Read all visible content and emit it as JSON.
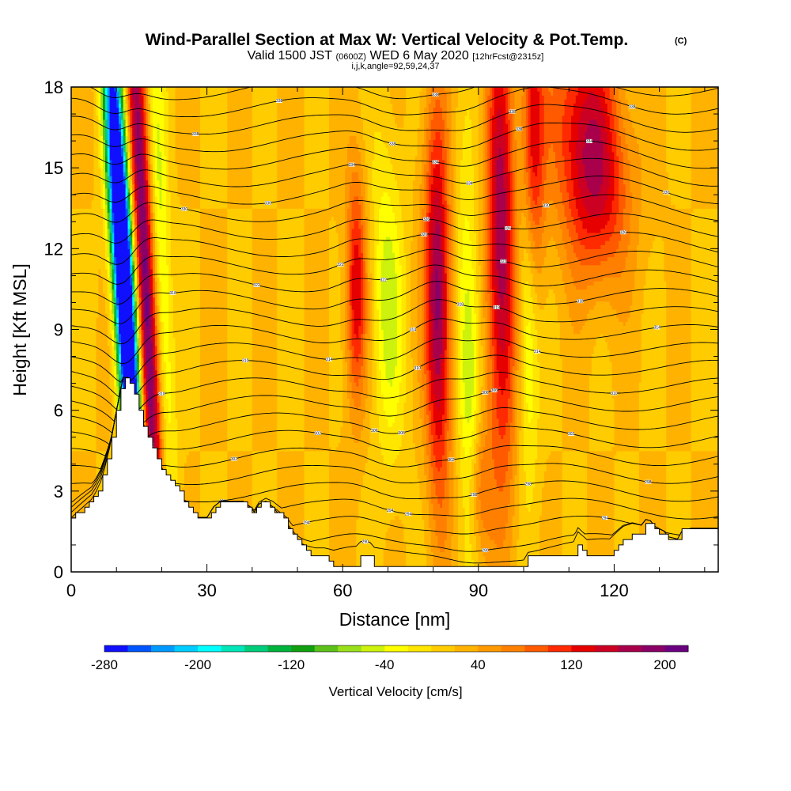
{
  "title": {
    "main": "Wind-Parallel Section at Max W: Vertical Velocity & Pot.Temp.",
    "copyright": "(C)",
    "line2": {
      "valid": "Valid 1500 JST",
      "utc": "(0600Z)",
      "date": "WED 6 May 2020",
      "fcst": "[12hrFcst@2315z]"
    },
    "line3": "i,j,k,angle=92,59,24,37"
  },
  "chart_data": {
    "type": "heatmap",
    "xlabel": "Distance [nm]",
    "ylabel": "Height [Kft MSL]",
    "xlim": [
      0,
      143
    ],
    "ylim": [
      0,
      18
    ],
    "x_ticks": [
      "0",
      "30",
      "60",
      "90",
      "120"
    ],
    "y_ticks": [
      "0",
      "3",
      "6",
      "9",
      "12",
      "15",
      "18"
    ],
    "colorbar": {
      "title": "Vertical Velocity [cm/s]",
      "tick_labels": [
        "-280",
        "-200",
        "-120",
        "-40",
        "40",
        "120",
        "200"
      ],
      "levels_min": -280,
      "level_step": 20,
      "colors": [
        "#1010ff",
        "#0055ff",
        "#0099ff",
        "#00ccff",
        "#00ffff",
        "#00e6b8",
        "#00cc7a",
        "#00b33c",
        "#10a010",
        "#5cc21a",
        "#99e01a",
        "#ccf20d",
        "#ffff00",
        "#ffe600",
        "#ffcc00",
        "#ffb300",
        "#ff9900",
        "#ff8000",
        "#ff5a00",
        "#ff2a00",
        "#e60000",
        "#cc0022",
        "#a8004a",
        "#8a0066",
        "#6b0080"
      ]
    },
    "background_w_cm_s": 20,
    "terrain_kft": [
      [
        0,
        2.0
      ],
      [
        1.5,
        2.2
      ],
      [
        3,
        2.4
      ],
      [
        4.5,
        2.6
      ],
      [
        5.5,
        2.9
      ],
      [
        6.5,
        3.3
      ],
      [
        7.5,
        3.9
      ],
      [
        8.5,
        4.6
      ],
      [
        9.5,
        5.5
      ],
      [
        10.5,
        6.4
      ],
      [
        11.5,
        7.2
      ],
      [
        12.5,
        7.2
      ],
      [
        13.5,
        6.8
      ],
      [
        14.5,
        6.2
      ],
      [
        15.5,
        5.7
      ],
      [
        16.5,
        5.2
      ],
      [
        17.5,
        4.7
      ],
      [
        18.5,
        4.3
      ],
      [
        19.5,
        4.0
      ],
      [
        20.5,
        3.7
      ],
      [
        21.5,
        3.5
      ],
      [
        22.5,
        3.3
      ],
      [
        23.5,
        3.1
      ],
      [
        24.5,
        2.8
      ],
      [
        25.5,
        2.5
      ],
      [
        26.5,
        2.3
      ],
      [
        27.5,
        2.0
      ],
      [
        30,
        2.0
      ],
      [
        31.5,
        2.4
      ],
      [
        33,
        2.6
      ],
      [
        38,
        2.6
      ],
      [
        39.5,
        2.4
      ],
      [
        40.5,
        2.2
      ],
      [
        41.5,
        2.5
      ],
      [
        43,
        2.6
      ],
      [
        44.5,
        2.4
      ],
      [
        46,
        2.1
      ],
      [
        47.5,
        1.8
      ],
      [
        48.5,
        1.5
      ],
      [
        49.5,
        1.2
      ],
      [
        50.5,
        1.0
      ],
      [
        52,
        0.8
      ],
      [
        54,
        0.6
      ],
      [
        56,
        0.5
      ],
      [
        58,
        0.3
      ],
      [
        63,
        0.3
      ],
      [
        64,
        0.5
      ],
      [
        66,
        0.5
      ],
      [
        67,
        0.3
      ],
      [
        100,
        0.3
      ],
      [
        101,
        0.6
      ],
      [
        104,
        0.6
      ],
      [
        108,
        0.6
      ],
      [
        111,
        0.6
      ],
      [
        112,
        1.0
      ],
      [
        113,
        0.8
      ],
      [
        114,
        0.6
      ],
      [
        119,
        0.6
      ],
      [
        120,
        0.8
      ],
      [
        121,
        1.0
      ],
      [
        122,
        1.2
      ],
      [
        124,
        1.4
      ],
      [
        126,
        1.4
      ],
      [
        127,
        1.7
      ],
      [
        128,
        1.7
      ],
      [
        129,
        1.5
      ],
      [
        131,
        1.4
      ],
      [
        132,
        1.2
      ],
      [
        134,
        1.2
      ],
      [
        135,
        1.5
      ],
      [
        137,
        1.6
      ],
      [
        143,
        1.6
      ]
    ],
    "w_features": [
      {
        "x": 12.5,
        "z": 8,
        "w": -290,
        "sx": 1.4,
        "sz": 9,
        "tilt": 0.35
      },
      {
        "x": 11.5,
        "z": 12,
        "w": -220,
        "sx": 1.8,
        "sz": 6,
        "tilt": 0.35
      },
      {
        "x": 16.5,
        "z": 10,
        "w": 200,
        "sx": 1.6,
        "sz": 10,
        "tilt": 0.28
      },
      {
        "x": 20,
        "z": 11,
        "w": -70,
        "sx": 1.5,
        "sz": 8,
        "tilt": 0.2
      },
      {
        "x": 63,
        "z": 10.5,
        "w": 120,
        "sx": 1.6,
        "sz": 3,
        "tilt": 0.0
      },
      {
        "x": 70,
        "z": 10,
        "w": -70,
        "sx": 2.5,
        "sz": 4,
        "tilt": 0.1
      },
      {
        "x": 81,
        "z": 10,
        "w": 170,
        "sx": 2.0,
        "sz": 5,
        "tilt": 0.05
      },
      {
        "x": 88,
        "z": 7,
        "w": -90,
        "sx": 1.8,
        "sz": 5,
        "tilt": 0.1
      },
      {
        "x": 95,
        "z": 12,
        "w": 160,
        "sx": 2.2,
        "sz": 6,
        "tilt": 0.05
      },
      {
        "x": 101,
        "z": 9.5,
        "w": -80,
        "sx": 1.6,
        "sz": 4,
        "tilt": 0.05
      },
      {
        "x": 102,
        "z": 16,
        "w": 120,
        "sx": 1.8,
        "sz": 4,
        "tilt": 0.0
      },
      {
        "x": 113,
        "z": 17,
        "w": 100,
        "sx": 5,
        "sz": 3,
        "tilt": 0.0
      },
      {
        "x": 117,
        "z": 14,
        "w": 90,
        "sx": 5,
        "sz": 2.5,
        "tilt": 0.0
      },
      {
        "x": 90,
        "z": 3,
        "w": 80,
        "sx": 2,
        "sz": 2,
        "tilt": 0.0
      }
    ],
    "contour_labels": [
      "290",
      "294",
      "298",
      "302",
      "306",
      "310",
      "314",
      "318",
      "322",
      "326",
      "330",
      "334",
      "338"
    ]
  }
}
